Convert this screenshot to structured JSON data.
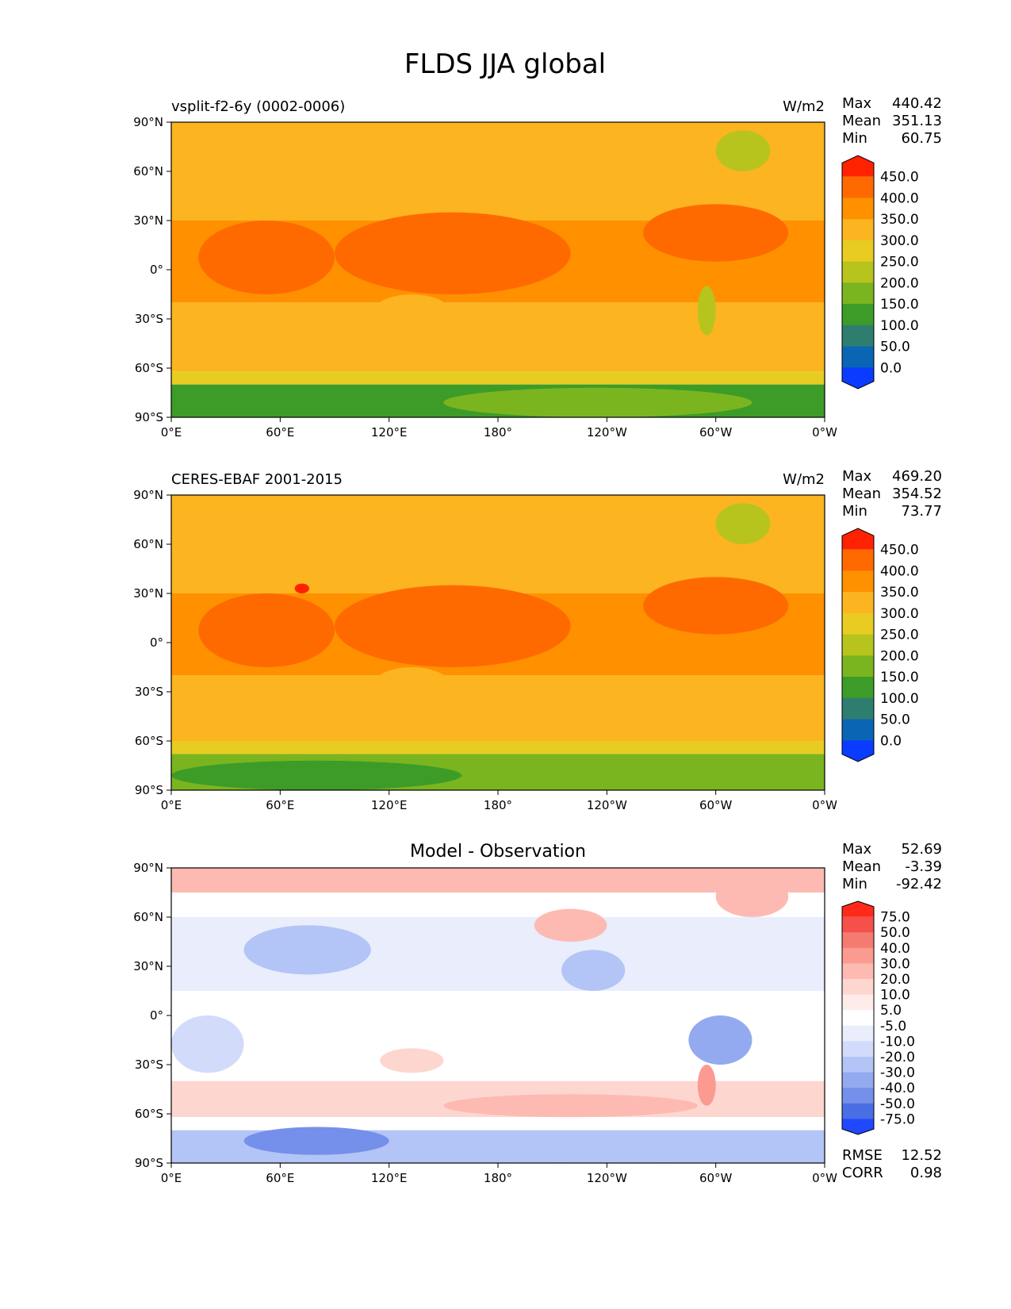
{
  "figure_title": "FLDS JJA global",
  "chart_data": [
    {
      "type": "heatmap",
      "panel": "model",
      "title_left": "vsplit-f2-6y (0002-0006)",
      "title_right": "W/m2",
      "stats": [
        {
          "label": "Max",
          "value": "440.42"
        },
        {
          "label": "Mean",
          "value": "351.13"
        },
        {
          "label": "Min",
          "value": "60.75"
        }
      ],
      "xticks": [
        "0°E",
        "60°E",
        "120°E",
        "180°",
        "120°W",
        "60°W",
        "0°W"
      ],
      "yticks": [
        "90°N",
        "60°N",
        "30°N",
        "0°",
        "30°S",
        "60°S",
        "90°S"
      ],
      "xlim": [
        0,
        360
      ],
      "ylim": [
        -90,
        90
      ],
      "colorbar": {
        "levels": [
          "450.0",
          "400.0",
          "350.0",
          "300.0",
          "250.0",
          "200.0",
          "150.0",
          "100.0",
          "50.0",
          "0.0"
        ],
        "colors": [
          "#ff2200",
          "#ff6a00",
          "#ff9000",
          "#fcb420",
          "#e8cc22",
          "#b8c41e",
          "#7ab520",
          "#3d9c28",
          "#2e7e70",
          "#0a66b4",
          "#0a3cff"
        ]
      },
      "zonal_bands": [
        {
          "lat": [
            60,
            90
          ],
          "value": 320
        },
        {
          "lat": [
            30,
            60
          ],
          "value": 345
        },
        {
          "lat": [
            0,
            30
          ],
          "value": 385
        },
        {
          "lat": [
            -20,
            0
          ],
          "value": 370
        },
        {
          "lat": [
            -45,
            -20
          ],
          "value": 340
        },
        {
          "lat": [
            -62,
            -45
          ],
          "value": 310
        },
        {
          "lat": [
            -70,
            -62
          ],
          "value": 250
        },
        {
          "lat": [
            -90,
            -70
          ],
          "value": 130
        }
      ],
      "regions": [
        {
          "lon": [
            90,
            220
          ],
          "lat": [
            -15,
            35
          ],
          "value": 415
        },
        {
          "lon": [
            15,
            90
          ],
          "lat": [
            -15,
            30
          ],
          "value": 405
        },
        {
          "lon": [
            260,
            340
          ],
          "lat": [
            5,
            40
          ],
          "value": 405
        },
        {
          "lon": [
            300,
            330
          ],
          "lat": [
            60,
            85
          ],
          "value": 220
        },
        {
          "lon": [
            150,
            320
          ],
          "lat": [
            -90,
            -72
          ],
          "value": 190
        },
        {
          "lon": [
            0,
            150
          ],
          "lat": [
            -90,
            -72
          ],
          "value": 120
        },
        {
          "lon": [
            110,
            155
          ],
          "lat": [
            -40,
            -15
          ],
          "value": 330
        },
        {
          "lon": [
            290,
            300
          ],
          "lat": [
            -40,
            -10
          ],
          "value": 230
        }
      ]
    },
    {
      "type": "heatmap",
      "panel": "observation",
      "title_left": "CERES-EBAF 2001-2015",
      "title_right": "W/m2",
      "stats": [
        {
          "label": "Max",
          "value": "469.20"
        },
        {
          "label": "Mean",
          "value": "354.52"
        },
        {
          "label": "Min",
          "value": "73.77"
        }
      ],
      "xticks": [
        "0°E",
        "60°E",
        "120°E",
        "180°",
        "120°W",
        "60°W",
        "0°W"
      ],
      "yticks": [
        "90°N",
        "60°N",
        "30°N",
        "0°",
        "30°S",
        "60°S",
        "90°S"
      ],
      "xlim": [
        0,
        360
      ],
      "ylim": [
        -90,
        90
      ],
      "colorbar": {
        "levels": [
          "450.0",
          "400.0",
          "350.0",
          "300.0",
          "250.0",
          "200.0",
          "150.0",
          "100.0",
          "50.0",
          "0.0"
        ],
        "colors": [
          "#ff2200",
          "#ff6a00",
          "#ff9000",
          "#fcb420",
          "#e8cc22",
          "#b8c41e",
          "#7ab520",
          "#3d9c28",
          "#2e7e70",
          "#0a66b4",
          "#0a3cff"
        ]
      },
      "zonal_bands": [
        {
          "lat": [
            60,
            90
          ],
          "value": 305
        },
        {
          "lat": [
            30,
            60
          ],
          "value": 345
        },
        {
          "lat": [
            0,
            30
          ],
          "value": 385
        },
        {
          "lat": [
            -20,
            0
          ],
          "value": 375
        },
        {
          "lat": [
            -45,
            -20
          ],
          "value": 345
        },
        {
          "lat": [
            -60,
            -45
          ],
          "value": 310
        },
        {
          "lat": [
            -68,
            -60
          ],
          "value": 260
        },
        {
          "lat": [
            -90,
            -68
          ],
          "value": 160
        }
      ],
      "regions": [
        {
          "lon": [
            90,
            220
          ],
          "lat": [
            -15,
            35
          ],
          "value": 415
        },
        {
          "lon": [
            15,
            90
          ],
          "lat": [
            -15,
            30
          ],
          "value": 410
        },
        {
          "lon": [
            260,
            340
          ],
          "lat": [
            5,
            40
          ],
          "value": 410
        },
        {
          "lon": [
            68,
            76
          ],
          "lat": [
            30,
            36
          ],
          "value": 455
        },
        {
          "lon": [
            300,
            330
          ],
          "lat": [
            60,
            85
          ],
          "value": 230
        },
        {
          "lon": [
            0,
            160
          ],
          "lat": [
            -90,
            -72
          ],
          "value": 120
        },
        {
          "lon": [
            110,
            155
          ],
          "lat": [
            -40,
            -15
          ],
          "value": 330
        }
      ]
    },
    {
      "type": "heatmap",
      "panel": "difference",
      "title_center": "Model - Observation",
      "stats": [
        {
          "label": "Max",
          "value": "52.69"
        },
        {
          "label": "Mean",
          "value": "-3.39"
        },
        {
          "label": "Min",
          "value": "-92.42"
        }
      ],
      "metrics": [
        {
          "label": "RMSE",
          "value": "12.52"
        },
        {
          "label": "CORR",
          "value": "0.98"
        }
      ],
      "xticks": [
        "0°E",
        "60°E",
        "120°E",
        "180°",
        "120°W",
        "60°W",
        "0°W"
      ],
      "yticks": [
        "90°N",
        "60°N",
        "30°N",
        "0°",
        "30°S",
        "60°S",
        "90°S"
      ],
      "xlim": [
        0,
        360
      ],
      "ylim": [
        -90,
        90
      ],
      "colorbar": {
        "levels": [
          "75.0",
          "50.0",
          "40.0",
          "30.0",
          "20.0",
          "10.0",
          "5.0",
          "-5.0",
          "-10.0",
          "-20.0",
          "-30.0",
          "-40.0",
          "-50.0",
          "-75.0"
        ],
        "colors": [
          "#ff2a1a",
          "#f5504a",
          "#f57a70",
          "#fb9a90",
          "#fdbab2",
          "#fdd6d0",
          "#feeceb",
          "#ffffff",
          "#e9edfc",
          "#d2dbfa",
          "#b3c4f6",
          "#94aaf0",
          "#7590ea",
          "#4a6ee4",
          "#1f48ff"
        ]
      },
      "zonal_bands": [
        {
          "lat": [
            75,
            90
          ],
          "value": 22
        },
        {
          "lat": [
            60,
            75
          ],
          "value": 2
        },
        {
          "lat": [
            15,
            60
          ],
          "value": -8
        },
        {
          "lat": [
            -20,
            15
          ],
          "value": 0
        },
        {
          "lat": [
            -40,
            -20
          ],
          "value": -4
        },
        {
          "lat": [
            -62,
            -40
          ],
          "value": 12
        },
        {
          "lat": [
            -70,
            -62
          ],
          "value": 2
        },
        {
          "lat": [
            -90,
            -70
          ],
          "value": -25
        }
      ],
      "regions": [
        {
          "lon": [
            40,
            110
          ],
          "lat": [
            25,
            55
          ],
          "value": -25
        },
        {
          "lon": [
            0,
            40
          ],
          "lat": [
            -35,
            0
          ],
          "value": -12
        },
        {
          "lon": [
            285,
            320
          ],
          "lat": [
            -30,
            0
          ],
          "value": -35
        },
        {
          "lon": [
            290,
            300
          ],
          "lat": [
            -55,
            -30
          ],
          "value": 35
        },
        {
          "lon": [
            300,
            340
          ],
          "lat": [
            60,
            85
          ],
          "value": 25
        },
        {
          "lon": [
            200,
            240
          ],
          "lat": [
            45,
            65
          ],
          "value": 22
        },
        {
          "lon": [
            215,
            250
          ],
          "lat": [
            15,
            40
          ],
          "value": -25
        },
        {
          "lon": [
            115,
            150
          ],
          "lat": [
            -35,
            -20
          ],
          "value": 15
        },
        {
          "lon": [
            40,
            120
          ],
          "lat": [
            -85,
            -68
          ],
          "value": -45
        },
        {
          "lon": [
            150,
            330
          ],
          "lat": [
            -90,
            -75
          ],
          "value": -22
        },
        {
          "lon": [
            150,
            290
          ],
          "lat": [
            -62,
            -48
          ],
          "value": 22
        }
      ]
    }
  ]
}
